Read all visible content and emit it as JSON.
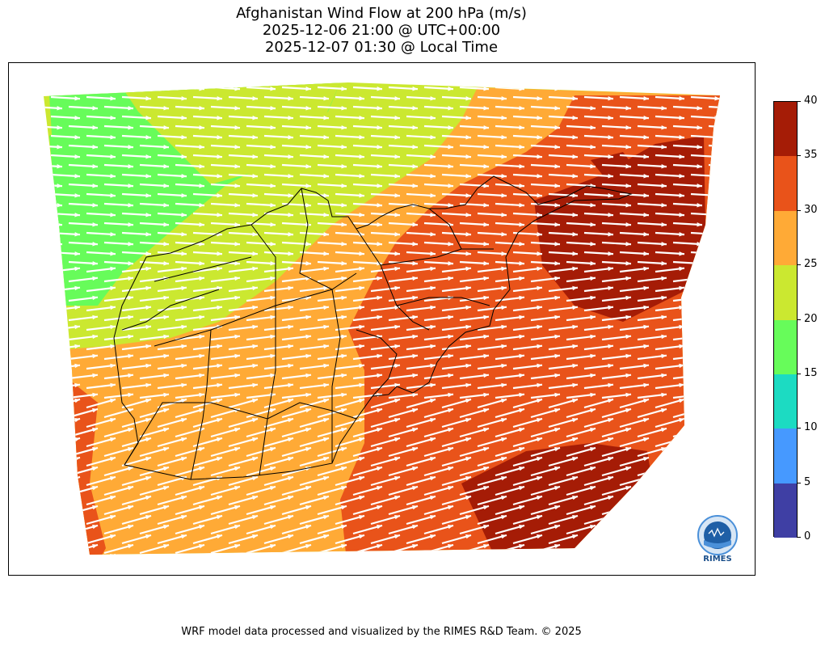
{
  "title": {
    "line1": "Afghanistan Wind Flow at 200 hPa (m/s)",
    "line2": "2025-12-06 21:00 @ UTC+00:00",
    "line3": "2025-12-07 01:30 @ Local Time"
  },
  "colorbar": {
    "min": 0,
    "max": 40,
    "ticks": [
      "0",
      "5",
      "10",
      "15",
      "20",
      "25",
      "30",
      "35",
      "40"
    ],
    "colors": [
      "#3f3fa4",
      "#4699ff",
      "#1cdbc2",
      "#67fc5a",
      "#cbe830",
      "#ffaa36",
      "#e9531a",
      "#a51c06"
    ]
  },
  "map": {
    "wind_direction": "west-to-east with south-west component in the south",
    "arrow_color": "#ffffff",
    "border_color": "#000000"
  },
  "logo": {
    "text": "RIMES"
  },
  "footer": "WRF model data processed and visualized by the RIMES R&D Team. © 2025"
}
